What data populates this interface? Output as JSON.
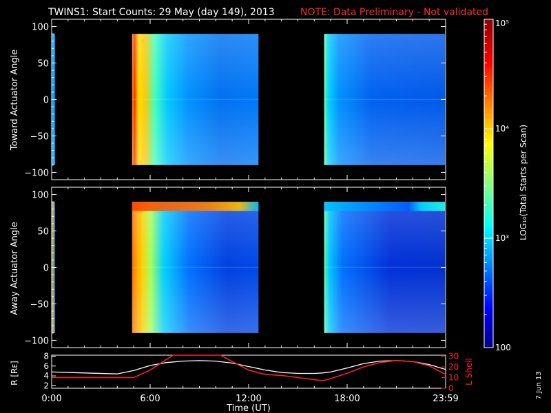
{
  "title_main": "TWINS1: Start Counts: 29 May (day 149), 2013",
  "title_note": "NOTE: Data Preliminary - Not validated",
  "date_stamp": "7 Jun 13",
  "colors": {
    "note": "#ff2a2a",
    "lshell": "#ff2020",
    "radius": "#ffffff"
  },
  "chart_data": [
    {
      "type": "heatmap",
      "ylabel": "Toward Actuator Angle",
      "ylim": [
        -110,
        110
      ],
      "yticks": [
        "100",
        "50",
        "0",
        "−50",
        "−100"
      ],
      "ytick_values": [
        100,
        50,
        0,
        -50,
        -100
      ],
      "x_range_hours": [
        0,
        24
      ],
      "data_blocks_hours": [
        [
          0,
          0.2
        ],
        [
          4.9,
          12.6
        ],
        [
          16.6,
          24
        ]
      ]
    },
    {
      "type": "heatmap",
      "ylabel": "Away Actuator Angle",
      "ylim": [
        -110,
        110
      ],
      "yticks": [
        "100",
        "50",
        "0",
        "−50",
        "−100"
      ],
      "ytick_values": [
        100,
        50,
        0,
        -50,
        -100
      ],
      "x_range_hours": [
        0,
        24
      ],
      "data_blocks_hours": [
        [
          0,
          0.2
        ],
        [
          4.9,
          12.6
        ],
        [
          16.6,
          24
        ]
      ]
    },
    {
      "type": "line",
      "ylabel": "R [Rᴇ]",
      "y2label": "L Shell",
      "xlabel": "Time (UT)",
      "xticks": [
        "0:00",
        "6:00",
        "12:00",
        "18:00",
        "23:59"
      ],
      "xtick_values": [
        0,
        6,
        12,
        18,
        24
      ],
      "yticks": [
        "2",
        "4",
        "6",
        "8"
      ],
      "ytick_values": [
        2,
        4,
        6,
        8
      ],
      "ylim": [
        1.5,
        8.2
      ],
      "y2ticks": [
        "0",
        "10",
        "20",
        "30"
      ],
      "y2tick_values": [
        0,
        10,
        20,
        30
      ],
      "y2lim": [
        0,
        31
      ],
      "series": [
        {
          "axis": "left",
          "x": [
            0,
            2,
            4,
            5,
            6,
            7,
            8,
            9,
            10,
            11,
            12,
            13,
            14,
            15,
            16,
            16.5,
            17,
            18,
            19,
            20,
            21,
            22,
            23,
            24
          ],
          "y": [
            4.8,
            4.6,
            4.4,
            5.1,
            6.1,
            6.7,
            7.0,
            7.1,
            7.0,
            6.6,
            5.9,
            5.2,
            4.7,
            4.5,
            4.5,
            4.6,
            4.8,
            5.6,
            6.5,
            7.0,
            7.1,
            6.9,
            6.3,
            5.3
          ]
        },
        {
          "axis": "right",
          "x": [
            0,
            2,
            4,
            5,
            6,
            7,
            7.4,
            10.3,
            11,
            12,
            13,
            14,
            15,
            16,
            16.5,
            17,
            18,
            19,
            20,
            21,
            22,
            23,
            24
          ],
          "y": [
            10,
            10,
            10,
            10,
            17,
            27,
            31,
            31,
            25,
            17,
            13,
            12,
            10,
            8,
            7,
            9,
            14,
            20,
            24,
            26,
            25,
            21,
            13
          ]
        }
      ]
    }
  ],
  "colorbar": {
    "label": "LOG₁₀(Total Starts per Scan)",
    "tick_labels": [
      "10⁵",
      "10⁴",
      "10³",
      "100"
    ],
    "tick_exponents": [
      5,
      4,
      3,
      2
    ],
    "range_exponent": [
      2,
      5
    ]
  }
}
